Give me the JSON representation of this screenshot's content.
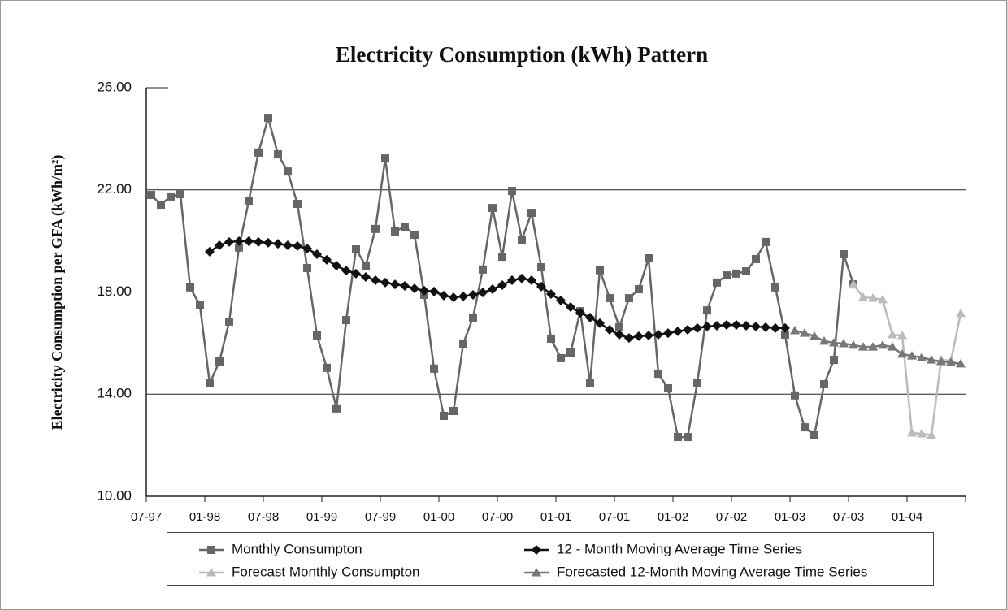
{
  "chart_data": {
    "type": "line",
    "title": "Electricity Consumption (kWh) Pattern",
    "y_label": "Electricity Consumption per GFA (kWh/m²)",
    "categories": [
      "07-97",
      null,
      null,
      null,
      null,
      null,
      "01-98",
      null,
      null,
      null,
      null,
      null,
      "07-98",
      null,
      null,
      null,
      null,
      null,
      "01-99",
      null,
      null,
      null,
      null,
      null,
      "07-99",
      null,
      null,
      null,
      null,
      null,
      "01-00",
      null,
      null,
      null,
      null,
      null,
      "07-00",
      null,
      null,
      null,
      null,
      null,
      "01-01",
      null,
      null,
      null,
      null,
      null,
      "07-01",
      null,
      null,
      null,
      null,
      null,
      "01-02",
      null,
      null,
      null,
      null,
      null,
      "07-02",
      null,
      null,
      null,
      null,
      null,
      "01-03",
      null,
      null,
      null,
      null,
      null,
      "07-03",
      null,
      null,
      null,
      null,
      null,
      "01-04",
      null,
      null,
      null,
      null,
      null
    ],
    "ylim": [
      10,
      26
    ],
    "yticks": [
      {
        "value": 10,
        "label": "10.00"
      },
      {
        "value": 14,
        "label": "14.00"
      },
      {
        "value": 18,
        "label": "18.00"
      },
      {
        "value": 22,
        "label": "22.00"
      },
      {
        "value": 26,
        "label": "26.00"
      }
    ],
    "grid": true,
    "legend_position": "bottom",
    "series": [
      {
        "name": "Monthly Consumpton",
        "color": "#666666",
        "marker": "square",
        "values": [
          21.8,
          21.42,
          21.74,
          21.83,
          18.18,
          17.48,
          14.42,
          15.28,
          16.84,
          19.74,
          21.55,
          23.46,
          24.82,
          23.39,
          22.72,
          21.45,
          18.94,
          16.3,
          15.03,
          13.44,
          16.9,
          19.67,
          19.03,
          20.47,
          23.23,
          20.37,
          20.56,
          20.24,
          17.89,
          15.0,
          13.15,
          13.34,
          15.98,
          17.0,
          18.88,
          21.29,
          19.38,
          21.96,
          20.05,
          21.1,
          18.97,
          16.17,
          15.41,
          15.63,
          17.25,
          14.42,
          18.85,
          17.76,
          16.62,
          17.76,
          18.11,
          19.32,
          14.8,
          14.23,
          12.32,
          12.32,
          14.45,
          17.28,
          18.37,
          18.65,
          18.72,
          18.81,
          19.29,
          19.96,
          18.18,
          16.33,
          13.95,
          12.7,
          12.39,
          14.39,
          15.34,
          19.48,
          18.3,
          null,
          null,
          null,
          null,
          null,
          null,
          null,
          null,
          null,
          null,
          null
        ]
      },
      {
        "name": "12 - Month Moving Average Time Series",
        "color": "#111111",
        "marker": "diamond",
        "values": [
          null,
          null,
          null,
          null,
          null,
          null,
          19.58,
          19.83,
          19.96,
          19.99,
          19.99,
          19.96,
          19.93,
          19.89,
          19.83,
          19.8,
          19.7,
          19.48,
          19.26,
          19.03,
          18.84,
          18.72,
          18.59,
          18.46,
          18.37,
          18.3,
          18.24,
          18.14,
          18.05,
          18.02,
          17.86,
          17.79,
          17.83,
          17.89,
          17.98,
          18.11,
          18.27,
          18.46,
          18.53,
          18.46,
          18.21,
          17.92,
          17.67,
          17.41,
          17.19,
          17.0,
          16.78,
          16.52,
          16.33,
          16.2,
          16.27,
          16.3,
          16.33,
          16.39,
          16.46,
          16.52,
          16.59,
          16.65,
          16.68,
          16.71,
          16.71,
          16.68,
          16.65,
          16.62,
          16.59,
          16.59,
          null,
          null,
          null,
          null,
          null,
          null,
          null,
          null,
          null,
          null,
          null,
          null,
          null,
          null,
          null,
          null,
          null,
          null
        ]
      },
      {
        "name": "Forecast Monthly Consumpton",
        "color": "#bbbbbb",
        "marker": "triangle",
        "values": [
          null,
          null,
          null,
          null,
          null,
          null,
          null,
          null,
          null,
          null,
          null,
          null,
          null,
          null,
          null,
          null,
          null,
          null,
          null,
          null,
          null,
          null,
          null,
          null,
          null,
          null,
          null,
          null,
          null,
          null,
          null,
          null,
          null,
          null,
          null,
          null,
          null,
          null,
          null,
          null,
          null,
          null,
          null,
          null,
          null,
          null,
          null,
          null,
          null,
          null,
          null,
          null,
          null,
          null,
          null,
          null,
          null,
          null,
          null,
          null,
          null,
          null,
          null,
          null,
          null,
          null,
          null,
          null,
          null,
          null,
          null,
          null,
          18.3,
          17.79,
          17.76,
          17.7,
          16.33,
          16.3,
          12.48,
          12.45,
          12.39,
          15.34,
          15.31,
          17.16
        ]
      },
      {
        "name": "Forecasted 12-Month Moving Average Time Series",
        "color": "#777777",
        "marker": "triangle",
        "values": [
          null,
          null,
          null,
          null,
          null,
          null,
          null,
          null,
          null,
          null,
          null,
          null,
          null,
          null,
          null,
          null,
          null,
          null,
          null,
          null,
          null,
          null,
          null,
          null,
          null,
          null,
          null,
          null,
          null,
          null,
          null,
          null,
          null,
          null,
          null,
          null,
          null,
          null,
          null,
          null,
          null,
          null,
          null,
          null,
          null,
          null,
          null,
          null,
          null,
          null,
          null,
          null,
          null,
          null,
          null,
          null,
          null,
          null,
          null,
          null,
          null,
          null,
          null,
          null,
          null,
          null,
          16.49,
          16.39,
          16.27,
          16.08,
          16.01,
          15.98,
          15.92,
          15.85,
          15.85,
          15.92,
          15.85,
          15.57,
          15.5,
          15.44,
          15.34,
          15.28,
          15.25,
          15.19
        ]
      }
    ]
  }
}
